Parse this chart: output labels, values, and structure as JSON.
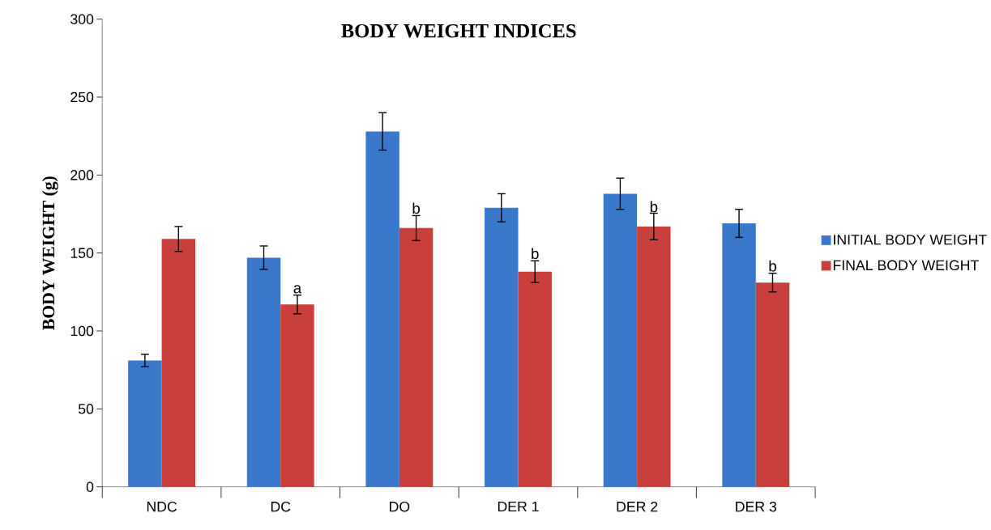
{
  "chart_data": {
    "type": "bar",
    "title": "BODY WEIGHT INDICES",
    "ylabel": "BODY WEIGHT (g)",
    "categories": [
      "NDC",
      "DC",
      "DO",
      "DER 1",
      "DER 2",
      "DER 3"
    ],
    "series": [
      {
        "name": "INITIAL BODY WEIGHT",
        "color": "#3a78cc",
        "values": [
          81,
          147,
          228,
          179,
          188,
          169
        ],
        "errors": [
          4,
          7.5,
          12,
          9,
          10,
          9
        ]
      },
      {
        "name": "FINAL BODY WEIGHT",
        "color": "#c93f3b",
        "values": [
          159,
          117,
          166,
          138,
          167,
          131
        ],
        "errors": [
          8,
          6,
          8,
          7,
          8.5,
          6
        ]
      }
    ],
    "ylim": [
      0,
      300
    ],
    "yticks": [
      0,
      50,
      100,
      150,
      200,
      250,
      300
    ],
    "grid": false,
    "legend": "right",
    "annotations": [
      {
        "text": "a",
        "x": "DC",
        "y": 123
      },
      {
        "text": "b",
        "x": "DO",
        "y": 174
      },
      {
        "text": "b",
        "x": "DER 1",
        "y": 145
      },
      {
        "text": "b",
        "x": "DER 2",
        "y": 175
      },
      {
        "text": "b",
        "x": "DER 3",
        "y": 137
      }
    ]
  }
}
